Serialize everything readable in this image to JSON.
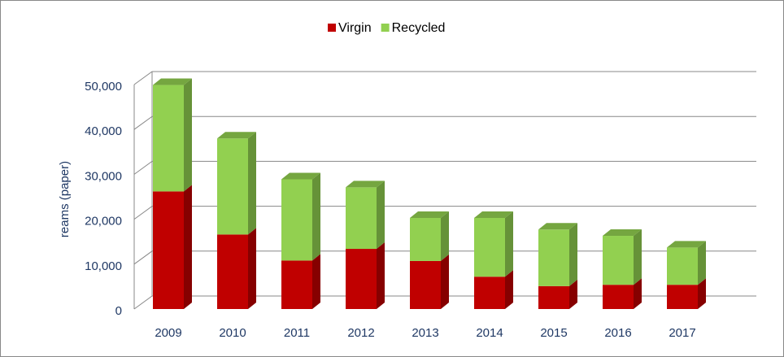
{
  "chart_data": {
    "type": "bar3d_stacked",
    "y_label": "reams (paper)",
    "categories": [
      "2009",
      "2010",
      "2011",
      "2012",
      "2013",
      "2014",
      "2015",
      "2016",
      "2017"
    ],
    "series": [
      {
        "name": "Virgin",
        "color": "#c00000",
        "values": [
          26200,
          16600,
          10800,
          13400,
          10700,
          7200,
          5100,
          5400,
          5400
        ]
      },
      {
        "name": "Recycled",
        "color": "#92d050",
        "values": [
          23700,
          21400,
          18100,
          13700,
          9600,
          13100,
          12600,
          10900,
          8300
        ]
      }
    ],
    "ylim": [
      0,
      50000
    ],
    "yticks": [
      0,
      {
        "value": 10000,
        "label": "10,000"
      },
      {
        "value": 20000,
        "label": "20,000"
      },
      {
        "value": 30000,
        "label": "30,000"
      },
      {
        "value": 40000,
        "label": "40,000"
      },
      {
        "value": 50000,
        "label": "50,000"
      }
    ],
    "grid": true,
    "legend": "top"
  }
}
